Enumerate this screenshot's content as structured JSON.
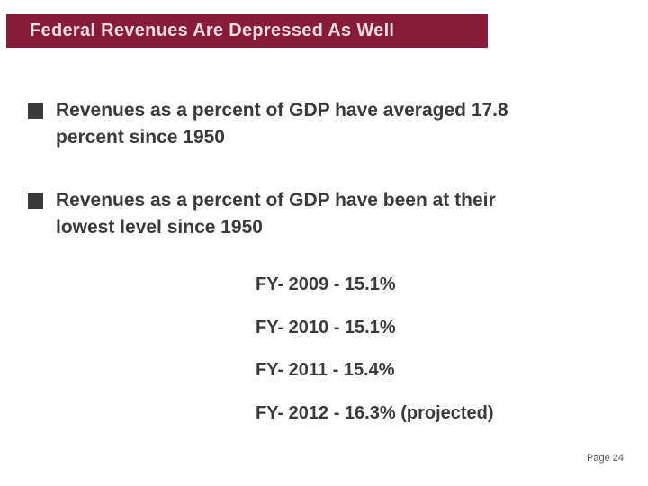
{
  "slide": {
    "title": "Federal Revenues Are Depressed As Well",
    "bullets": [
      {
        "lines": [
          "Revenues as a percent of GDP have averaged 17.8",
          "percent since 1950"
        ]
      },
      {
        "lines": [
          "Revenues as a percent of GDP have been at their",
          "lowest level since 1950"
        ]
      }
    ],
    "fy_lines": [
      "FY- 2009 - 15.1%",
      "FY- 2010 - 15.1%",
      "FY- 2011 - 15.4%",
      "FY- 2012 - 16.3% (projected)"
    ],
    "page_label": "Page 24",
    "colors": {
      "title_bar_bg": "#871b3a",
      "title_text": "#f2dce3",
      "body_text": "#3a3a3a",
      "bullet_marker": "#3a3a3a",
      "page_text": "#595959"
    }
  }
}
